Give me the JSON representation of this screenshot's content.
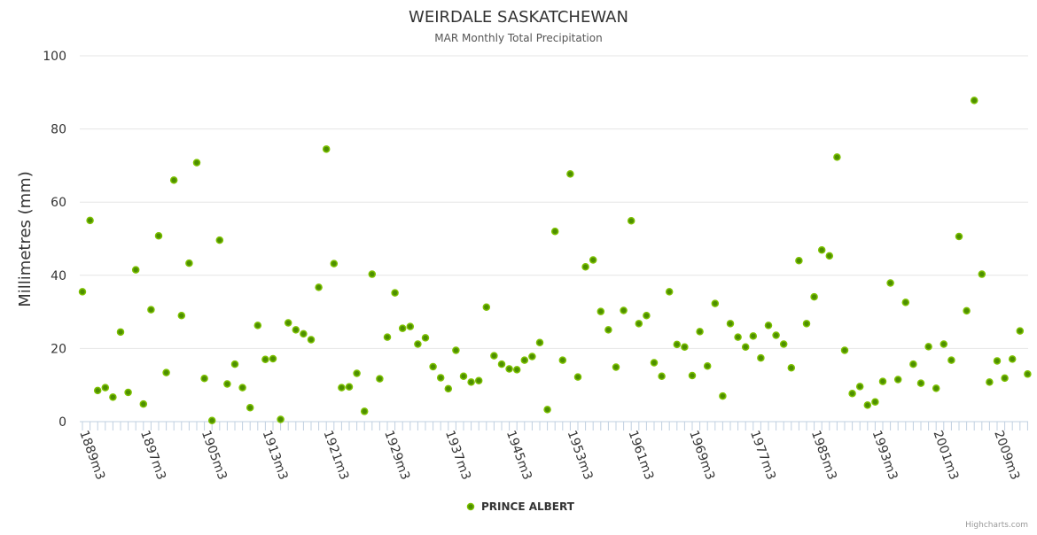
{
  "chart_data": {
    "type": "scatter",
    "title": "WEIRDALE SASKATCHEWAN",
    "subtitle": "MAR Monthly Total Precipitation",
    "xlabel": "",
    "ylabel": "Millimetres (mm)",
    "ylim": [
      0,
      100
    ],
    "yticks": [
      0,
      20,
      40,
      60,
      80,
      100
    ],
    "x_start_year": 1889,
    "x_end_year": 2013,
    "x_label_suffix": "m3",
    "x_label_every": 8,
    "grid": true,
    "legend_position": "bottom-center",
    "series": [
      {
        "name": "PRINCE ALBERT",
        "color": "#66a800",
        "values": [
          35.5,
          55,
          8.5,
          9.3,
          6.7,
          24.5,
          8,
          41.5,
          4.8,
          30.6,
          50.8,
          13.4,
          66,
          29,
          43.3,
          70.8,
          11.8,
          0.3,
          49.6,
          10.3,
          15.7,
          9.3,
          3.8,
          26.3,
          17,
          17.2,
          0.6,
          27,
          25.1,
          24,
          22.4,
          36.7,
          74.5,
          43.2,
          9.3,
          9.5,
          13.2,
          2.8,
          40.3,
          11.7,
          23.1,
          35.2,
          25.5,
          26,
          21.2,
          22.9,
          15,
          12,
          9,
          19.5,
          12.4,
          10.8,
          11.2,
          31.3,
          18,
          15.7,
          14.4,
          14.2,
          16.8,
          17.8,
          21.6,
          3.3,
          52,
          16.8,
          67.7,
          12.2,
          42.3,
          44.2,
          30.1,
          25.1,
          14.9,
          30.4,
          54.9,
          26.8,
          29,
          16.1,
          12.4,
          35.5,
          21.1,
          20.4,
          12.6,
          24.6,
          15.2,
          32.3,
          7,
          26.8,
          23.1,
          20.4,
          23.4,
          17.4,
          26.3,
          23.6,
          21.2,
          14.7,
          44,
          26.8,
          34.1,
          46.9,
          45.3,
          72.3,
          19.5,
          7.7,
          9.6,
          4.5,
          5.4,
          11,
          37.9,
          11.5,
          32.6,
          15.7,
          10.5,
          20.5,
          9.1,
          21.2,
          16.8,
          50.6,
          30.3,
          87.8,
          40.3,
          10.8,
          16.6,
          11.9,
          17.1,
          24.8,
          13
        ]
      }
    ],
    "credits": "Highcharts.com"
  }
}
